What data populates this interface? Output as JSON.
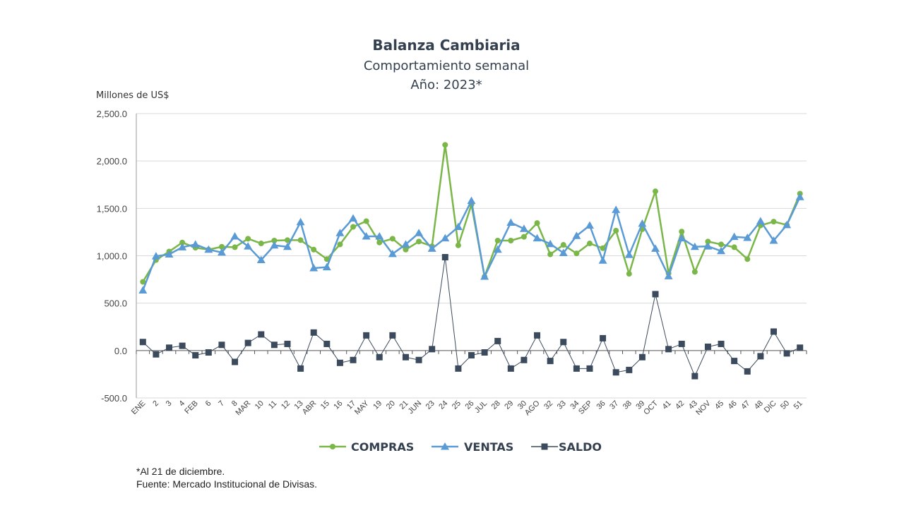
{
  "chart_data": {
    "type": "line",
    "title": "Balanza Cambiaria",
    "subtitle": "Comportamiento semanal",
    "subtitle2": "Año: 2023*",
    "ylabel": "Millones de US$",
    "ylim": [
      -500,
      2500
    ],
    "yticks": [
      -500,
      0,
      500,
      1000,
      1500,
      2000,
      2500
    ],
    "ytick_labels": [
      "-500.0",
      "0.0",
      "500.0",
      "1,000.0",
      "1,500.0",
      "2,000.0",
      "2,500.0"
    ],
    "grid": true,
    "legend_position": "bottom",
    "categories": [
      "ENE",
      "2",
      "3",
      "4",
      "FEB",
      "6",
      "7",
      "8",
      "MAR",
      "10",
      "11",
      "12",
      "13",
      "ABR",
      "15",
      "16",
      "17",
      "MAY",
      "19",
      "20",
      "21",
      "JUN",
      "23",
      "24",
      "25",
      "26",
      "JUL",
      "28",
      "29",
      "30",
      "AGO",
      "32",
      "33",
      "34",
      "SEP",
      "36",
      "37",
      "38",
      "39",
      "OCT",
      "41",
      "42",
      "43",
      "NOV",
      "45",
      "46",
      "47",
      "48",
      "DIC",
      "50",
      "51"
    ],
    "series": [
      {
        "name": "COMPRAS",
        "color": "#7ab648",
        "marker": "circle",
        "values": [
          725,
          955,
          1045,
          1140,
          1085,
          1065,
          1095,
          1090,
          1180,
          1130,
          1160,
          1165,
          1165,
          1065,
          965,
          1120,
          1305,
          1365,
          1140,
          1180,
          1065,
          1150,
          1100,
          2170,
          1110,
          1540,
          780,
          1160,
          1160,
          1200,
          1345,
          1015,
          1115,
          1025,
          1130,
          1080,
          1265,
          810,
          1280,
          1680,
          815,
          1255,
          830,
          1150,
          1120,
          1090,
          965,
          1320,
          1360,
          1325,
          1655
        ]
      },
      {
        "name": "VENTAS",
        "color": "#5b9bd5",
        "marker": "triangle",
        "values": [
          635,
          995,
          1015,
          1090,
          1120,
          1065,
          1035,
          1205,
          1100,
          955,
          1110,
          1095,
          1355,
          870,
          880,
          1240,
          1395,
          1205,
          1205,
          1020,
          1120,
          1240,
          1075,
          1185,
          1305,
          1580,
          780,
          1065,
          1350,
          1285,
          1185,
          1125,
          1030,
          1210,
          1320,
          950,
          1485,
          1010,
          1340,
          1075,
          785,
          1185,
          1095,
          1100,
          1050,
          1200,
          1190,
          1365,
          1160,
          1325,
          1620
        ]
      },
      {
        "name": "SALDO",
        "color": "#3b4a5c",
        "marker": "square",
        "values": [
          90,
          -40,
          30,
          50,
          -50,
          -20,
          60,
          -120,
          80,
          170,
          60,
          70,
          -190,
          190,
          70,
          -130,
          -100,
          160,
          -70,
          160,
          -70,
          -100,
          15,
          985,
          -190,
          -50,
          -20,
          100,
          -190,
          -100,
          160,
          -110,
          90,
          -190,
          -190,
          130,
          -230,
          -205,
          -70,
          595,
          15,
          70,
          -270,
          40,
          70,
          -110,
          -220,
          -60,
          200,
          -30,
          30
        ]
      }
    ]
  },
  "footnote": {
    "line1": "*Al 21 de diciembre.",
    "line2": "Fuente: Mercado Institucional de Divisas."
  }
}
